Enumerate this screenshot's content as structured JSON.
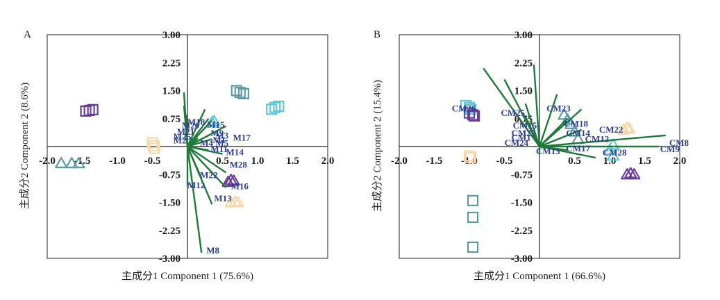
{
  "colors": {
    "loading": "#1f7a3a",
    "label": "#2c3e96",
    "purple": "#6a3d9a",
    "teal": "#5b9aa0",
    "cyan": "#5bc8d6",
    "peach": "#f5d7a8"
  },
  "chart_data": [
    {
      "type": "scatter",
      "subtype": "pca-biplot",
      "panel": "A",
      "xlabel": "主成分1 Component 1 (75.6%)",
      "ylabel": "主成分2 Component 2 (8.6%)",
      "xlim": [
        -2.0,
        2.0
      ],
      "ylim": [
        -3.0,
        3.0
      ],
      "xticks": [
        "-2.0",
        "-1.5",
        "-1.0",
        "-0.5",
        "0.5",
        "1.0",
        "1.5",
        "2.0"
      ],
      "xtick_values": [
        -2.0,
        -1.5,
        -1.0,
        -0.5,
        0.5,
        1.0,
        1.5,
        2.0
      ],
      "yticks": [
        "3.00",
        "2.25",
        "1.50",
        "0.75",
        "-0.75",
        "-1.50",
        "-2.25",
        "-3.00"
      ],
      "ytick_values": [
        3.0,
        2.25,
        1.5,
        0.75,
        -0.75,
        -1.5,
        -2.25,
        -3.0
      ],
      "grid": false,
      "loadings": [
        {
          "label": "M18",
          "x": -0.05,
          "y": 1.45,
          "lx": 0.0,
          "ly": 1.35
        },
        {
          "label": "M15",
          "x": 0.25,
          "y": 1.0,
          "lx": 0.28,
          "ly": 1.2
        },
        {
          "label": "M20",
          "x": -0.05,
          "y": 1.1,
          "lx": -0.08,
          "ly": 1.15
        },
        {
          "label": "M21",
          "x": -0.02,
          "y": 0.85,
          "lx": -0.15,
          "ly": 0.82
        },
        {
          "label": "M25",
          "x": -0.02,
          "y": 0.6,
          "lx": -0.2,
          "ly": 0.55
        },
        {
          "label": "M2",
          "x": -0.02,
          "y": 0.4,
          "lx": -0.2,
          "ly": 0.35
        },
        {
          "label": "M3",
          "x": 0.35,
          "y": 0.7,
          "lx": 0.4,
          "ly": 0.62
        },
        {
          "label": "M9",
          "x": 0.3,
          "y": 0.75,
          "lx": 0.33,
          "ly": 0.74
        },
        {
          "label": "M17",
          "x": 0.55,
          "y": 0.55,
          "lx": 0.65,
          "ly": 0.5
        },
        {
          "label": "M1",
          "x": 0.3,
          "y": 0.3,
          "lx": 0.36,
          "ly": 0.37
        },
        {
          "label": "M4",
          "x": 0.15,
          "y": 0.22,
          "lx": 0.18,
          "ly": 0.2
        },
        {
          "label": "M5",
          "x": 0.35,
          "y": 0.2,
          "lx": 0.4,
          "ly": 0.2
        },
        {
          "label": "M11",
          "x": 0.3,
          "y": -0.1,
          "lx": 0.33,
          "ly": -0.12
        },
        {
          "label": "M14",
          "x": 0.5,
          "y": -0.2,
          "lx": 0.55,
          "ly": -0.28
        },
        {
          "label": "M28",
          "x": 0.55,
          "y": -0.7,
          "lx": 0.6,
          "ly": -0.95
        },
        {
          "label": "M22",
          "x": 0.2,
          "y": -0.85,
          "lx": 0.18,
          "ly": -1.5
        },
        {
          "label": "M12",
          "x": 0.0,
          "y": -1.05,
          "lx": 0.0,
          "ly": -2.05
        },
        {
          "label": "M16",
          "x": 0.55,
          "y": -1.1,
          "lx": 0.62,
          "ly": -2.1
        },
        {
          "label": "M13",
          "x": 0.35,
          "y": -1.55,
          "lx": 0.38,
          "ly": -2.75
        },
        {
          "label": "M8",
          "x": 0.2,
          "y": -2.85,
          "lx": 0.27,
          "ly": -5.55
        }
      ],
      "groups": [
        {
          "marker": "square",
          "color": "purple",
          "points": [
            [
              -1.45,
              0.95
            ],
            [
              -1.4,
              0.97
            ],
            [
              -1.35,
              0.99
            ]
          ]
        },
        {
          "marker": "triangle",
          "color": "teal",
          "points": [
            [
              -1.8,
              -0.45
            ],
            [
              -1.65,
              -0.45
            ],
            [
              -1.55,
              -0.45
            ]
          ]
        },
        {
          "marker": "square",
          "color": "peach",
          "points": [
            [
              -0.5,
              0.1
            ],
            [
              -0.48,
              0.02
            ],
            [
              -0.47,
              -0.05
            ]
          ]
        },
        {
          "marker": "square",
          "color": "teal",
          "points": [
            [
              0.7,
              1.5
            ],
            [
              0.75,
              1.45
            ],
            [
              0.8,
              1.42
            ]
          ]
        },
        {
          "marker": "square",
          "color": "cyan",
          "points": [
            [
              1.2,
              1.0
            ],
            [
              1.25,
              1.05
            ],
            [
              1.3,
              1.08
            ]
          ]
        },
        {
          "marker": "triangle",
          "color": "purple",
          "points": [
            [
              0.58,
              -0.95
            ],
            [
              0.62,
              -0.9
            ],
            [
              0.66,
              -0.92
            ]
          ]
        },
        {
          "marker": "triangle",
          "color": "peach",
          "points": [
            [
              0.62,
              -1.5
            ],
            [
              0.68,
              -1.48
            ],
            [
              0.72,
              -1.5
            ]
          ]
        },
        {
          "marker": "triangle",
          "color": "cyan",
          "points": [
            [
              0.35,
              0.65
            ],
            [
              0.38,
              0.68
            ]
          ]
        }
      ]
    },
    {
      "type": "scatter",
      "subtype": "pca-biplot",
      "panel": "B",
      "xlabel": "主成分1 Component 1 (66.6%)",
      "ylabel": "主成分2 Component 2 (15.4%)",
      "xlim": [
        -2.0,
        2.0
      ],
      "ylim": [
        -3.0,
        3.0
      ],
      "xticks": [
        "-2.0",
        "-1.5",
        "-1.0",
        "-0.5",
        "0.5",
        "1.0",
        "1.5",
        "2.0"
      ],
      "xtick_values": [
        -2.0,
        -1.5,
        -1.0,
        -0.5,
        0.5,
        1.0,
        1.5,
        2.0
      ],
      "yticks": [
        "3.00",
        "2.25",
        "1.50",
        "0.75",
        "-0.75",
        "-1.50",
        "-2.25",
        "-3.00"
      ],
      "ytick_values": [
        3.0,
        2.25,
        1.5,
        0.75,
        -0.75,
        -1.5,
        -2.25,
        -3.0
      ],
      "grid": false,
      "loadings": [
        {
          "label": "CM26",
          "x": -0.8,
          "y": 2.1,
          "lx": -1.25,
          "ly": 2.07
        },
        {
          "label": "CM23",
          "x": -0.08,
          "y": 2.2,
          "lx": 0.1,
          "ly": 2.07
        },
        {
          "label": "CM25",
          "x": -0.5,
          "y": 1.8,
          "lx": -0.55,
          "ly": 1.82
        },
        {
          "label": "CM18",
          "x": 0.25,
          "y": 1.4,
          "lx": 0.35,
          "ly": 1.25
        },
        {
          "label": "CM15",
          "x": -0.2,
          "y": 1.15,
          "lx": -0.38,
          "ly": 1.15
        },
        {
          "label": "CM22",
          "x": 0.6,
          "y": 1.0,
          "lx": 0.85,
          "ly": 0.93
        },
        {
          "label": "CM27",
          "x": -0.2,
          "y": 0.8,
          "lx": -0.4,
          "ly": 0.75
        },
        {
          "label": "CM14",
          "x": 0.4,
          "y": 0.75,
          "lx": 0.38,
          "ly": 0.75
        },
        {
          "label": "CM1",
          "x": -0.15,
          "y": 0.55,
          "lx": -0.4,
          "ly": 0.5
        },
        {
          "label": "CM12",
          "x": 0.6,
          "y": 0.45,
          "lx": 0.65,
          "ly": 0.42
        },
        {
          "label": "CM24",
          "x": -0.1,
          "y": 0.3,
          "lx": -0.5,
          "ly": 0.22
        },
        {
          "label": "CM8",
          "x": 1.8,
          "y": 0.3,
          "lx": 1.85,
          "ly": 0.22
        },
        {
          "label": "CM9",
          "x": 1.7,
          "y": 0.0,
          "lx": 1.72,
          "ly": -0.12
        },
        {
          "label": "CM17",
          "x": 0.4,
          "y": -0.1,
          "lx": 0.38,
          "ly": -0.08
        },
        {
          "label": "CM13",
          "x": 0.0,
          "y": -0.2,
          "lx": -0.05,
          "ly": -0.22
        },
        {
          "label": "CM28",
          "x": 0.8,
          "y": -0.3,
          "lx": 0.9,
          "ly": -0.3
        }
      ],
      "groups": [
        {
          "marker": "square",
          "color": "cyan",
          "points": [
            [
              -1.05,
              1.1
            ],
            [
              -1.0,
              1.05
            ],
            [
              -0.98,
              1.0
            ]
          ]
        },
        {
          "marker": "square",
          "color": "purple",
          "points": [
            [
              -1.0,
              0.9
            ],
            [
              -0.95,
              0.85
            ],
            [
              -0.93,
              0.82
            ]
          ]
        },
        {
          "marker": "square",
          "color": "peach",
          "points": [
            [
              -1.0,
              -0.25
            ],
            [
              -0.98,
              -0.3
            ]
          ]
        },
        {
          "marker": "square",
          "color": "teal",
          "points": [
            [
              -0.95,
              -1.45
            ],
            [
              -0.95,
              -1.9
            ],
            [
              -0.95,
              -2.7
            ]
          ]
        },
        {
          "marker": "triangle",
          "color": "teal",
          "points": [
            [
              0.35,
              0.85
            ],
            [
              0.4,
              0.72
            ],
            [
              0.45,
              0.6
            ],
            [
              0.5,
              0.4
            ],
            [
              0.55,
              0.2
            ]
          ]
        },
        {
          "marker": "triangle",
          "color": "peach",
          "points": [
            [
              1.2,
              0.45
            ],
            [
              1.25,
              0.5
            ],
            [
              1.28,
              0.48
            ]
          ]
        },
        {
          "marker": "triangle",
          "color": "cyan",
          "points": [
            [
              1.05,
              0.05
            ],
            [
              1.0,
              -0.1
            ],
            [
              1.05,
              -0.25
            ]
          ]
        },
        {
          "marker": "triangle",
          "color": "purple",
          "points": [
            [
              1.25,
              -0.75
            ],
            [
              1.3,
              -0.72
            ],
            [
              1.35,
              -0.75
            ]
          ]
        }
      ]
    }
  ]
}
